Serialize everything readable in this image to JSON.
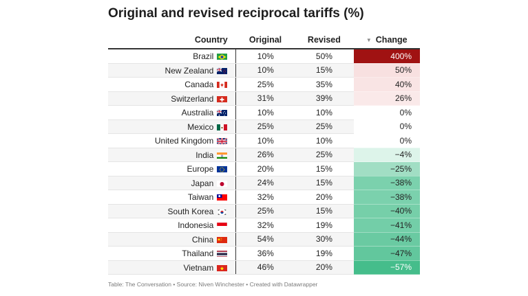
{
  "title": "Original and revised reciprocal tariffs (%)",
  "source": "Table: The Conversation • Source: Niven Winchester • Created with Datawrapper",
  "chart_data": {
    "type": "table",
    "columns": [
      "Country",
      "Original",
      "Revised",
      "Change"
    ],
    "sorted_by": "Change",
    "sort_indicator": "▼",
    "rows": [
      {
        "country": "Brazil",
        "flag": "brazil-flag-icon",
        "original": "10%",
        "revised": "50%",
        "change": "400%",
        "change_value": 400
      },
      {
        "country": "New Zealand",
        "flag": "new-zealand-flag-icon",
        "original": "10%",
        "revised": "15%",
        "change": "50%",
        "change_value": 50
      },
      {
        "country": "Canada",
        "flag": "canada-flag-icon",
        "original": "25%",
        "revised": "35%",
        "change": "40%",
        "change_value": 40
      },
      {
        "country": "Switzerland",
        "flag": "switzerland-flag-icon",
        "original": "31%",
        "revised": "39%",
        "change": "26%",
        "change_value": 26
      },
      {
        "country": "Australia",
        "flag": "australia-flag-icon",
        "original": "10%",
        "revised": "10%",
        "change": "0%",
        "change_value": 0
      },
      {
        "country": "Mexico",
        "flag": "mexico-flag-icon",
        "original": "25%",
        "revised": "25%",
        "change": "0%",
        "change_value": 0
      },
      {
        "country": "United Kingdom",
        "flag": "united-kingdom-flag-icon",
        "original": "10%",
        "revised": "10%",
        "change": "0%",
        "change_value": 0
      },
      {
        "country": "India",
        "flag": "india-flag-icon",
        "original": "26%",
        "revised": "25%",
        "change": "−4%",
        "change_value": -4
      },
      {
        "country": "Europe",
        "flag": "europe-flag-icon",
        "original": "20%",
        "revised": "15%",
        "change": "−25%",
        "change_value": -25
      },
      {
        "country": "Japan",
        "flag": "japan-flag-icon",
        "original": "24%",
        "revised": "15%",
        "change": "−38%",
        "change_value": -38
      },
      {
        "country": "Taiwan",
        "flag": "taiwan-flag-icon",
        "original": "32%",
        "revised": "20%",
        "change": "−38%",
        "change_value": -38
      },
      {
        "country": "South Korea",
        "flag": "south-korea-flag-icon",
        "original": "25%",
        "revised": "15%",
        "change": "−40%",
        "change_value": -40
      },
      {
        "country": "Indonesia",
        "flag": "indonesia-flag-icon",
        "original": "32%",
        "revised": "19%",
        "change": "−41%",
        "change_value": -41
      },
      {
        "country": "China",
        "flag": "china-flag-icon",
        "original": "54%",
        "revised": "30%",
        "change": "−44%",
        "change_value": -44
      },
      {
        "country": "Thailand",
        "flag": "thailand-flag-icon",
        "original": "36%",
        "revised": "19%",
        "change": "−47%",
        "change_value": -47
      },
      {
        "country": "Vietnam",
        "flag": "vietnam-flag-icon",
        "original": "46%",
        "revised": "20%",
        "change": "−57%",
        "change_value": -57
      }
    ]
  },
  "colors": {
    "strong_increase": "#a01212",
    "light_increase": "#f7dcdc",
    "strong_decrease": "#45bd8b",
    "light_decrease": "#e8f8f1"
  }
}
